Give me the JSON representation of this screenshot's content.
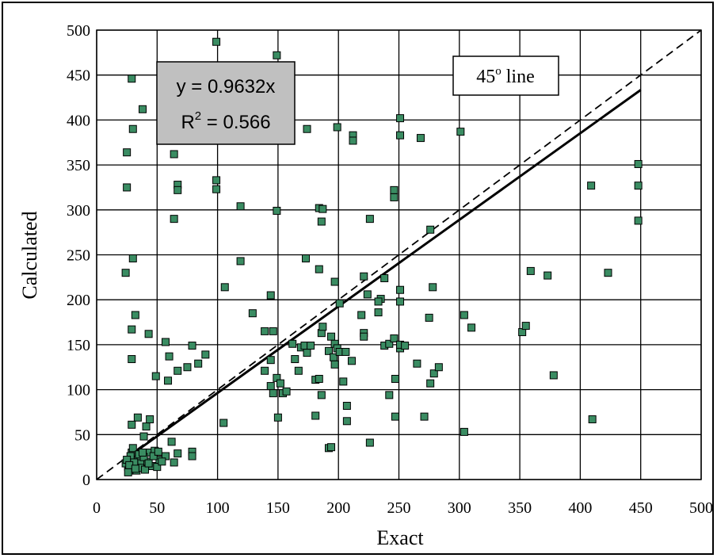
{
  "chart_data": {
    "type": "scatter",
    "xlabel": "Exact",
    "ylabel": "Calculated",
    "xlim": [
      0,
      500
    ],
    "ylim": [
      0,
      500
    ],
    "xticks": [
      "0",
      "50",
      "100",
      "150",
      "200",
      "250",
      "300",
      "350",
      "400",
      "450",
      "500"
    ],
    "yticks": [
      "0",
      "50",
      "100",
      "150",
      "200",
      "250",
      "300",
      "350",
      "400",
      "450",
      "500"
    ],
    "grid": true,
    "fit_label": "y = 0.9632x",
    "r2_prefix": "R",
    "r2_sup": "2",
    "r2_value": " = 0.566",
    "fit_slope": 0.9632,
    "fit_range": [
      25,
      450
    ],
    "reference_label": "45",
    "reference_sup": "o",
    "reference_suffix": " line",
    "marker_color": "#3a8c62",
    "points": [
      [
        29,
        446
      ],
      [
        99,
        487
      ],
      [
        149,
        472
      ],
      [
        38,
        412
      ],
      [
        30,
        390
      ],
      [
        25,
        364
      ],
      [
        25,
        325
      ],
      [
        64,
        362
      ],
      [
        67,
        328
      ],
      [
        67,
        322
      ],
      [
        64,
        290
      ],
      [
        99,
        333
      ],
      [
        99,
        323
      ],
      [
        119,
        304
      ],
      [
        174,
        390
      ],
      [
        199,
        392
      ],
      [
        212,
        383
      ],
      [
        212,
        377
      ],
      [
        251,
        402
      ],
      [
        251,
        383
      ],
      [
        268,
        380
      ],
      [
        301,
        387
      ],
      [
        246,
        322
      ],
      [
        246,
        314
      ],
      [
        226,
        290
      ],
      [
        184,
        302
      ],
      [
        187,
        301
      ],
      [
        186,
        287
      ],
      [
        149,
        299
      ],
      [
        409,
        327
      ],
      [
        448,
        351
      ],
      [
        448,
        327
      ],
      [
        448,
        288
      ],
      [
        30,
        246
      ],
      [
        24,
        230
      ],
      [
        106,
        214
      ],
      [
        119,
        243
      ],
      [
        173,
        246
      ],
      [
        184,
        234
      ],
      [
        144,
        205
      ],
      [
        197,
        220
      ],
      [
        201,
        196
      ],
      [
        221,
        226
      ],
      [
        224,
        206
      ],
      [
        235,
        201
      ],
      [
        238,
        224
      ],
      [
        251,
        211
      ],
      [
        251,
        198
      ],
      [
        276,
        278
      ],
      [
        278,
        214
      ],
      [
        359,
        232
      ],
      [
        373,
        227
      ],
      [
        423,
        230
      ],
      [
        304,
        183
      ],
      [
        310,
        169
      ],
      [
        352,
        164
      ],
      [
        355,
        171
      ],
      [
        29,
        167
      ],
      [
        32,
        183
      ],
      [
        43,
        162
      ],
      [
        29,
        134
      ],
      [
        57,
        153
      ],
      [
        60,
        137
      ],
      [
        67,
        121
      ],
      [
        75,
        125
      ],
      [
        79,
        149
      ],
      [
        84,
        129
      ],
      [
        90,
        139
      ],
      [
        129,
        185
      ],
      [
        139,
        165
      ],
      [
        146,
        165
      ],
      [
        139,
        121
      ],
      [
        144,
        133
      ],
      [
        149,
        113
      ],
      [
        144,
        104
      ],
      [
        146,
        96
      ],
      [
        152,
        107
      ],
      [
        154,
        96
      ],
      [
        157,
        98
      ],
      [
        162,
        151
      ],
      [
        164,
        134
      ],
      [
        167,
        121
      ],
      [
        169,
        147
      ],
      [
        172,
        149
      ],
      [
        174,
        141
      ],
      [
        177,
        149
      ],
      [
        181,
        111
      ],
      [
        184,
        112
      ],
      [
        186,
        94
      ],
      [
        186,
        163
      ],
      [
        187,
        170
      ],
      [
        192,
        143
      ],
      [
        194,
        159
      ],
      [
        196,
        136
      ],
      [
        197,
        128
      ],
      [
        197,
        151
      ],
      [
        199,
        146
      ],
      [
        201,
        142
      ],
      [
        204,
        109
      ],
      [
        206,
        142
      ],
      [
        207,
        82
      ],
      [
        207,
        65
      ],
      [
        211,
        132
      ],
      [
        219,
        183
      ],
      [
        221,
        163
      ],
      [
        221,
        159
      ],
      [
        233,
        186
      ],
      [
        233,
        198
      ],
      [
        238,
        149
      ],
      [
        242,
        94
      ],
      [
        242,
        151
      ],
      [
        246,
        157
      ],
      [
        247,
        112
      ],
      [
        247,
        70
      ],
      [
        251,
        146
      ],
      [
        251,
        150
      ],
      [
        255,
        149
      ],
      [
        265,
        129
      ],
      [
        271,
        70
      ],
      [
        275,
        180
      ],
      [
        276,
        107
      ],
      [
        279,
        118
      ],
      [
        283,
        125
      ],
      [
        304,
        53
      ],
      [
        378,
        116
      ],
      [
        410,
        67
      ],
      [
        49,
        115
      ],
      [
        59,
        110
      ],
      [
        150,
        69
      ],
      [
        181,
        71
      ],
      [
        105,
        63
      ],
      [
        192,
        35
      ],
      [
        194,
        36
      ],
      [
        226,
        41
      ],
      [
        34,
        69
      ],
      [
        39,
        48
      ],
      [
        41,
        59
      ],
      [
        44,
        67
      ],
      [
        29,
        61
      ],
      [
        34,
        24
      ],
      [
        37,
        18
      ],
      [
        42,
        20
      ],
      [
        44,
        30
      ],
      [
        48,
        32
      ],
      [
        52,
        22
      ],
      [
        57,
        26
      ],
      [
        62,
        42
      ],
      [
        64,
        19
      ],
      [
        67,
        29
      ],
      [
        79,
        31
      ],
      [
        79,
        26
      ],
      [
        27,
        20
      ],
      [
        29,
        30
      ],
      [
        31,
        15
      ],
      [
        33,
        10
      ],
      [
        26,
        14
      ],
      [
        24,
        18
      ],
      [
        27,
        10
      ],
      [
        30,
        35
      ],
      [
        36,
        13
      ],
      [
        40,
        11
      ],
      [
        46,
        15
      ],
      [
        50,
        14
      ],
      [
        54,
        20
      ],
      [
        28,
        26
      ],
      [
        31,
        19
      ],
      [
        35,
        28
      ],
      [
        39,
        25
      ],
      [
        43,
        18
      ],
      [
        47,
        26
      ],
      [
        51,
        31
      ],
      [
        25,
        22
      ],
      [
        27,
        16
      ],
      [
        32,
        12
      ],
      [
        38,
        30
      ],
      [
        26,
        8
      ]
    ]
  }
}
